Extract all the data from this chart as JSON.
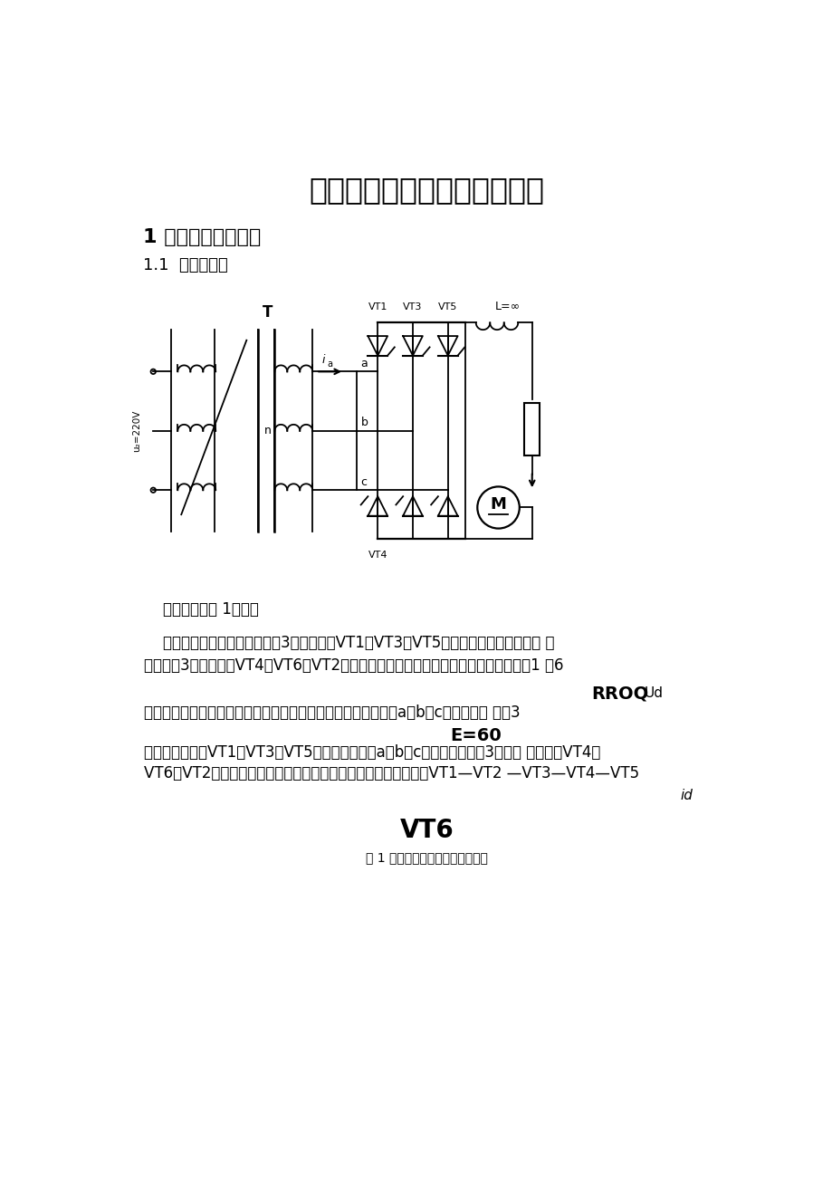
{
  "title": "三相桥式全控整流电路的设计",
  "section1": "1 主电路设计及原理",
  "section1_1": "1.1  主电路设计",
  "para1": "    其原理图如图 1所示。",
  "para2a": "    习惯将其中阴极连接在一起的3个晶闸管（VT1、VT3、VT5）称为共阴极组；阳极连 接",
  "para2b": "在一起的3个晶闸管（VT4、VT6、VT2）称为共阳极组。此外，习惯上希望晶闸管按从1 至6",
  "right_text1a": "RROQ",
  "right_text1b": "Ud",
  "para3": "的顺序导通，为此将晶闸管按图示的顺序编号，即共阴极组中与a、b、c三相电源相 接的3",
  "right_text2": "E=60",
  "para4a": "个晶闸管分别为VT1、VT3、VT5，共阳极组中与a、b、c三相电源相接的3个晶闸 管分别为VT4、",
  "para4b": "VT6、VT2。从后面的分析可知，按此编号，晶闸管的导通顺序为VT1—VT2 —VT3—VT4—VT5",
  "right_text3": "id",
  "para5": "VT6",
  "caption": "图 1 三相桥式全控整理电路原理图",
  "bg_color": "#ffffff",
  "text_color": "#000000"
}
